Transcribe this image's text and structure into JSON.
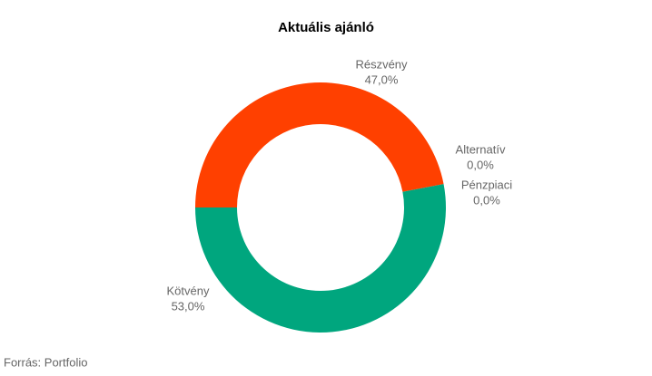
{
  "chart_data": {
    "type": "donut",
    "title": "Aktuális ajánló",
    "categories": [
      "Részvény",
      "Alternatív",
      "Pénzpiaci",
      "Kötvény"
    ],
    "values": [
      47.0,
      0.0,
      0.0,
      53.0
    ],
    "value_labels": [
      "47,0%",
      "0,0%",
      "0,0%",
      "53,0%"
    ],
    "colors": [
      "#ff4000",
      "#ffc000",
      "#7f7f7f",
      "#00a67e"
    ],
    "source": "Forrás: Portfolio"
  }
}
